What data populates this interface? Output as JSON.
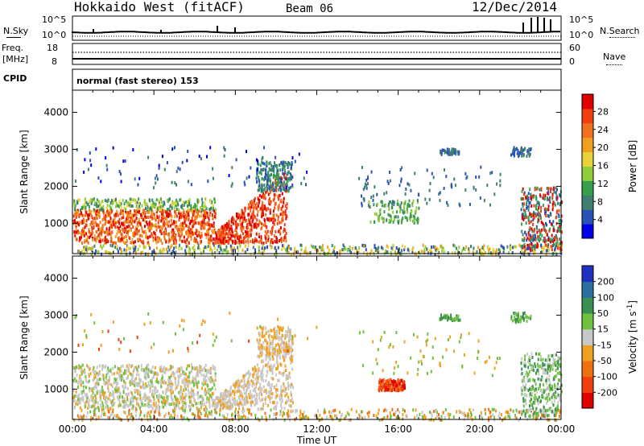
{
  "header": {
    "station": "Hokkaido West (fitACF)",
    "beam": "Beam 06",
    "date": "12/Dec/2014"
  },
  "params": {
    "nsky_label": "N.Sky",
    "nsky_ticks": [
      "10^5",
      "10^0"
    ],
    "nsearch_label": "N.Search",
    "nsearch_ticks": [
      "10^5",
      "10^0"
    ],
    "freq_label_1": "Freq.",
    "freq_label_2": "[MHz]",
    "freq_ticks": [
      "18",
      "8"
    ],
    "nave_label": "Nave",
    "nave_ticks": [
      "60",
      "0"
    ],
    "cpid_label": "CPID",
    "cpid_value": "normal (fast stereo) 153"
  },
  "chart_data": [
    {
      "type": "heatmap",
      "quantity": "Power",
      "ylabel": "Slant Range [km]",
      "xlabel": "Time UT",
      "x_ticks": [
        "00:00",
        "04:00",
        "08:00",
        "12:00",
        "16:00",
        "20:00",
        "00:00"
      ],
      "xlim_hours": [
        0,
        24
      ],
      "y_ticks": [
        1000,
        2000,
        3000,
        4000
      ],
      "ylim": [
        180,
        4600
      ],
      "colorbar": {
        "label": "Power [dB]",
        "ticks": [
          "4",
          "8",
          "12",
          "16",
          "20",
          "24",
          "28"
        ],
        "colors": [
          "#0000e6",
          "#2a52b6",
          "#3f7f70",
          "#36a04c",
          "#8fce3a",
          "#e8d23a",
          "#f0a020",
          "#f07020",
          "#f04010",
          "#e00000"
        ]
      }
    },
    {
      "type": "heatmap",
      "quantity": "Velocity",
      "ylabel": "Slant Range [km]",
      "xlabel": "Time UT",
      "x_ticks": [
        "00:00",
        "04:00",
        "08:00",
        "12:00",
        "16:00",
        "20:00",
        "00:00"
      ],
      "xlim_hours": [
        0,
        24
      ],
      "y_ticks": [
        1000,
        2000,
        3000,
        4000
      ],
      "ylim": [
        180,
        4600
      ],
      "colorbar": {
        "label": "Velocity [m s",
        "label_sup": "-1",
        "label_end": "]",
        "ticks": [
          "200",
          "100",
          "50",
          "15",
          "-15",
          "-50",
          "-100",
          "-200"
        ],
        "colors": [
          "#2030c0",
          "#2a70a0",
          "#3a9050",
          "#70c040",
          "#c8c8c8",
          "#f0a020",
          "#f07010",
          "#f04010",
          "#e00000"
        ]
      }
    }
  ],
  "xaxis_label": "Time UT"
}
